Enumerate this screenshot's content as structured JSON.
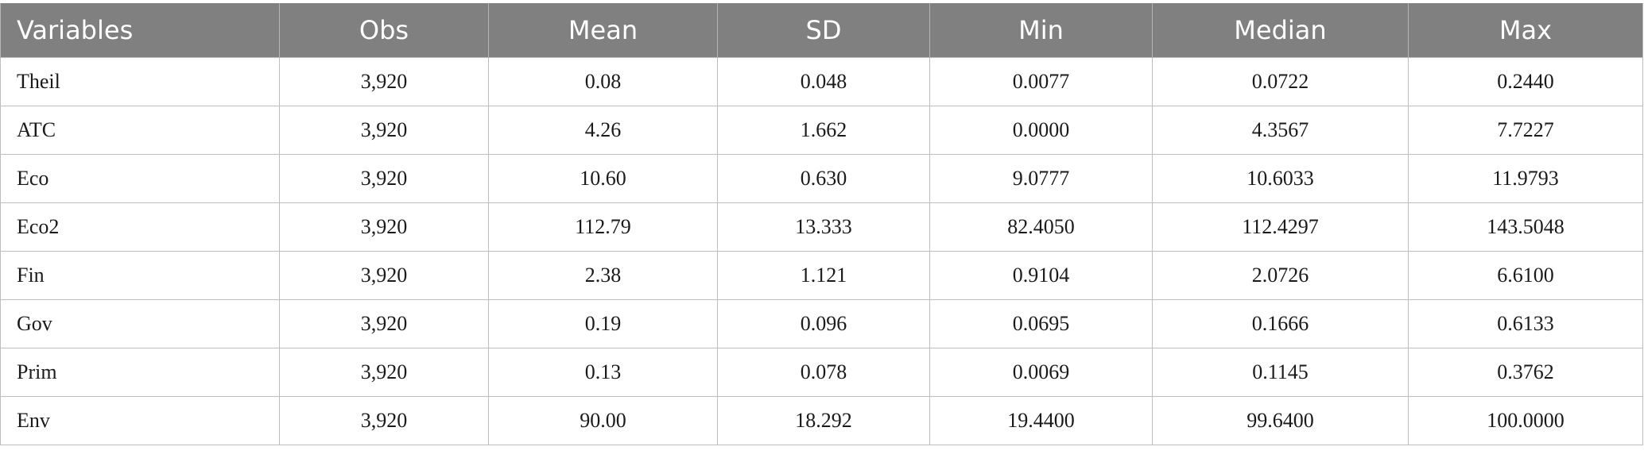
{
  "table": {
    "headers": [
      "Variables",
      "Obs",
      "Mean",
      "SD",
      "Min",
      "Median",
      "Max"
    ],
    "rows": [
      [
        "Theil",
        "3,920",
        "0.08",
        "0.048",
        "0.0077",
        "0.0722",
        "0.2440"
      ],
      [
        "ATC",
        "3,920",
        "4.26",
        "1.662",
        "0.0000",
        "4.3567",
        "7.7227"
      ],
      [
        "Eco",
        "3,920",
        "10.60",
        "0.630",
        "9.0777",
        "10.6033",
        "11.9793"
      ],
      [
        "Eco2",
        "3,920",
        "112.79",
        "13.333",
        "82.4050",
        "112.4297",
        "143.5048"
      ],
      [
        "Fin",
        "3,920",
        "2.38",
        "1.121",
        "0.9104",
        "2.0726",
        "6.6100"
      ],
      [
        "Gov",
        "3,920",
        "0.19",
        "0.096",
        "0.0695",
        "0.1666",
        "0.6133"
      ],
      [
        "Prim",
        "3,920",
        "0.13",
        "0.078",
        "0.0069",
        "0.1145",
        "0.3762"
      ],
      [
        "Env",
        "3,920",
        "90.00",
        "18.292",
        "19.4400",
        "99.6400",
        "100.0000"
      ]
    ]
  },
  "colors": {
    "header_bg": "#808080",
    "header_text": "#ffffff",
    "grid": "#bdbdbd"
  }
}
